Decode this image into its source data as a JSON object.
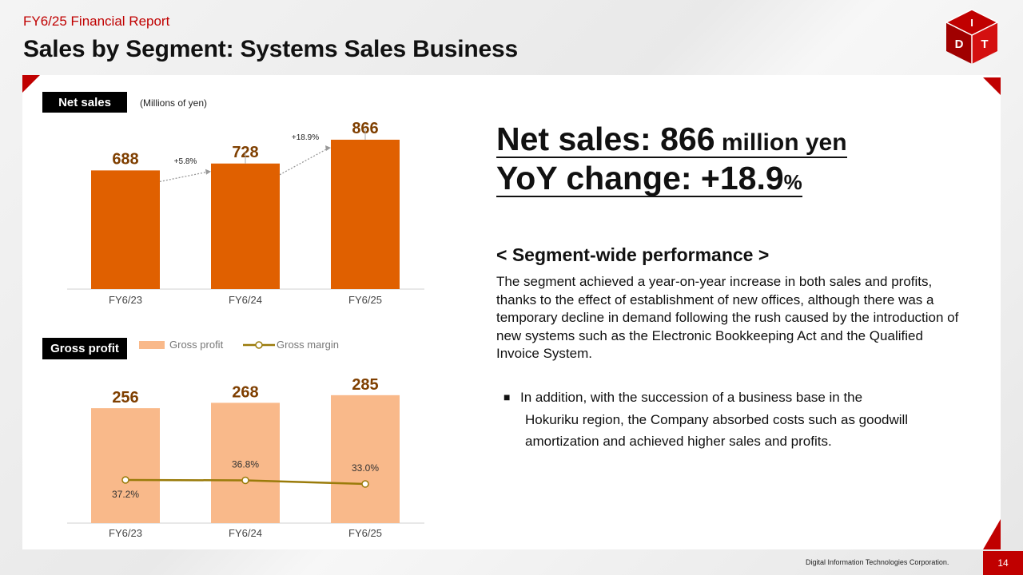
{
  "header": {
    "report_label": "FY6/25 Financial Report",
    "title": "Sales by Segment: Systems Sales Business"
  },
  "logo": {
    "letters": [
      "D",
      "I",
      "T"
    ],
    "icon": "dit-cube-logo-icon"
  },
  "colors": {
    "accent_red": "#c00000",
    "net_sales_bar": "#e06000",
    "gross_profit_bar": "#f9b98a",
    "gross_margin_line": "#9a7b0a",
    "value_label": "#7f3f00"
  },
  "net_sales_tag": "Net sales",
  "units": "(Millions of yen)",
  "gross_profit_tag": "Gross profit",
  "legend": {
    "gross_profit": "Gross profit",
    "gross_margin": "Gross margin"
  },
  "chart_data": [
    {
      "type": "bar",
      "categories": [
        "FY6/23",
        "FY6/24",
        "FY6/25"
      ],
      "values": [
        688,
        728,
        866
      ],
      "value_labels": [
        "688",
        "728",
        "866"
      ],
      "growth_labels": [
        "+5.8%",
        "+18.9%"
      ],
      "ylim": [
        0,
        1000
      ],
      "grid": false
    },
    {
      "type": "bar",
      "categories": [
        "FY6/23",
        "FY6/24",
        "FY6/25"
      ],
      "series": [
        {
          "name": "Gross profit",
          "values": [
            256,
            268,
            285
          ],
          "value_labels": [
            "256",
            "268",
            "285"
          ]
        },
        {
          "name": "Gross margin",
          "values": [
            37.2,
            36.8,
            33.0
          ],
          "value_labels": [
            "37.2%",
            "36.8%",
            "33.0%"
          ]
        }
      ],
      "grid": false
    }
  ],
  "summary": {
    "line1_big": "Net sales: 866",
    "line1_small": " million yen",
    "line2_big": "YoY change: +18.9",
    "line2_small": "%"
  },
  "section_heading": "< Segment-wide performance >",
  "body_text": "The segment achieved a year-on-year increase in both sales and profits, thanks to the effect of establishment of new offices, although there was a temporary decline in demand following the rush caused by the introduction of new systems such as the Electronic Bookkeeping Act and the Qualified Invoice System.",
  "bullet": {
    "mark": "■",
    "line1": "In addition, with the succession of a business base in the",
    "line2": "Hokuriku region, the Company absorbed costs such as goodwill",
    "line3": "amortization and achieved higher sales and profits."
  },
  "footer": {
    "company": "Digital Information Technologies Corporation.",
    "page": "14"
  }
}
